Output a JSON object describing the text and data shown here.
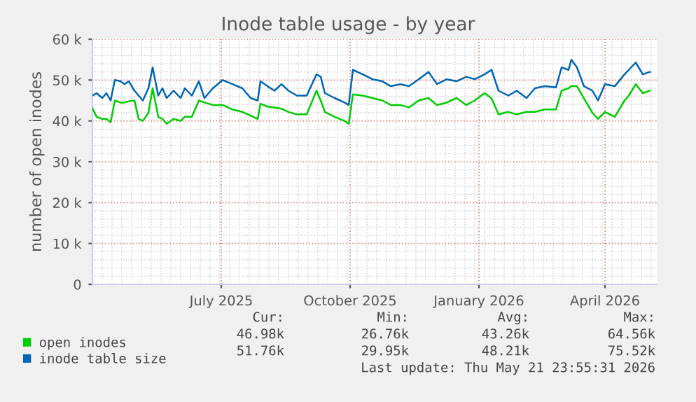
{
  "chart_data": {
    "type": "line",
    "title": "Inode table usage - by year",
    "ylabel": "number of open inodes",
    "x": [
      "2025-04-14",
      "2025-04-17",
      "2025-04-21",
      "2025-04-24",
      "2025-04-27",
      "2025-04-30",
      "2025-05-04",
      "2025-05-07",
      "2025-05-10",
      "2025-05-14",
      "2025-05-17",
      "2025-05-20",
      "2025-05-24",
      "2025-05-27",
      "2025-05-31",
      "2025-06-03",
      "2025-06-06",
      "2025-06-11",
      "2025-06-16",
      "2025-06-19",
      "2025-06-24",
      "2025-06-29",
      "2025-07-03",
      "2025-07-09",
      "2025-07-16",
      "2025-07-23",
      "2025-07-30",
      "2025-08-05",
      "2025-08-10",
      "2025-08-12",
      "2025-08-17",
      "2025-08-22",
      "2025-08-27",
      "2025-09-01",
      "2025-09-07",
      "2025-09-14",
      "2025-09-21",
      "2025-09-24",
      "2025-09-27",
      "2025-10-04",
      "2025-10-11",
      "2025-10-14",
      "2025-10-17",
      "2025-10-24",
      "2025-10-31",
      "2025-11-07",
      "2025-11-13",
      "2025-11-20",
      "2025-11-26",
      "2025-12-03",
      "2025-12-10",
      "2025-12-16",
      "2025-12-23",
      "2025-12-30",
      "2026-01-06",
      "2026-01-12",
      "2026-01-19",
      "2026-01-24",
      "2026-01-29",
      "2026-02-05",
      "2026-02-11",
      "2026-02-18",
      "2026-02-24",
      "2026-03-03",
      "2026-03-11",
      "2026-03-15",
      "2026-03-20",
      "2026-03-22",
      "2026-03-26",
      "2026-03-31",
      "2026-04-06",
      "2026-04-10",
      "2026-04-15",
      "2026-04-22",
      "2026-04-29",
      "2026-05-02",
      "2026-05-07",
      "2026-05-12",
      "2026-05-17"
    ],
    "series": [
      {
        "name": "open inodes",
        "color": "#00cc00",
        "values": [
          43100,
          41000,
          40500,
          40500,
          39700,
          45000,
          44500,
          44500,
          44800,
          45000,
          40500,
          40000,
          42000,
          48000,
          41000,
          40500,
          39300,
          40500,
          40000,
          41000,
          41000,
          45000,
          44500,
          43900,
          43900,
          42800,
          42200,
          41300,
          40500,
          44200,
          43500,
          43300,
          43000,
          42200,
          41600,
          41600,
          47400,
          45000,
          42200,
          41000,
          40000,
          39300,
          46500,
          46200,
          45600,
          45000,
          43900,
          43900,
          43300,
          45000,
          45600,
          43900,
          44500,
          45600,
          43900,
          45000,
          46800,
          45500,
          41600,
          42200,
          41600,
          42200,
          42200,
          42800,
          42800,
          47400,
          48000,
          48500,
          48500,
          45500,
          42000,
          40500,
          42200,
          41000,
          45000,
          46200,
          49000,
          46800,
          47400
        ]
      },
      {
        "name": "inode table size",
        "color": "#0066b3",
        "values": [
          46200,
          46800,
          45600,
          46800,
          45000,
          50000,
          49700,
          49000,
          49700,
          47400,
          46200,
          45000,
          48000,
          53100,
          46200,
          48000,
          45600,
          47400,
          45600,
          48000,
          46200,
          49700,
          45600,
          48000,
          50000,
          49000,
          48000,
          45600,
          45000,
          49700,
          48500,
          47400,
          49000,
          47400,
          46200,
          46200,
          51400,
          50800,
          46800,
          45600,
          44500,
          43900,
          52500,
          51400,
          50200,
          49700,
          48500,
          49000,
          48500,
          50200,
          52000,
          49000,
          50200,
          49700,
          50800,
          50200,
          51400,
          52500,
          47400,
          46200,
          47400,
          45600,
          48000,
          48500,
          48200,
          53100,
          52500,
          55000,
          53100,
          48500,
          47400,
          45000,
          49000,
          48500,
          51400,
          52500,
          54300,
          51400,
          52000
        ]
      }
    ],
    "xlim": [
      "2025-04-14",
      "2026-05-22"
    ],
    "xticks": [
      {
        "value": "2025-07-15",
        "label": "July 2025"
      },
      {
        "value": "2025-10-15",
        "label": "October 2025"
      },
      {
        "value": "2026-01-15",
        "label": "January 2026"
      },
      {
        "value": "2026-04-15",
        "label": "April 2026"
      }
    ],
    "ylim": [
      0,
      60000
    ],
    "yticks": [
      0,
      {
        "value": 10000,
        "label": "10 k"
      },
      {
        "value": 20000,
        "label": "20 k"
      },
      {
        "value": 30000,
        "label": "30 k"
      },
      {
        "value": 40000,
        "label": "40 k"
      },
      {
        "value": 50000,
        "label": "50 k"
      },
      {
        "value": 60000,
        "label": "60 k"
      }
    ],
    "grid": true,
    "legend": "bottom",
    "marker": "none",
    "line_style": "solid",
    "annotations": [
      "Cur:",
      "Min:",
      "Avg:",
      "Max:",
      "46.98k",
      "26.76k",
      "43.26k",
      "64.56k",
      "51.76k",
      "29.95k",
      "48.21k",
      "75.52k",
      "Last update: Thu May 21 23:55:31 2026"
    ]
  }
}
